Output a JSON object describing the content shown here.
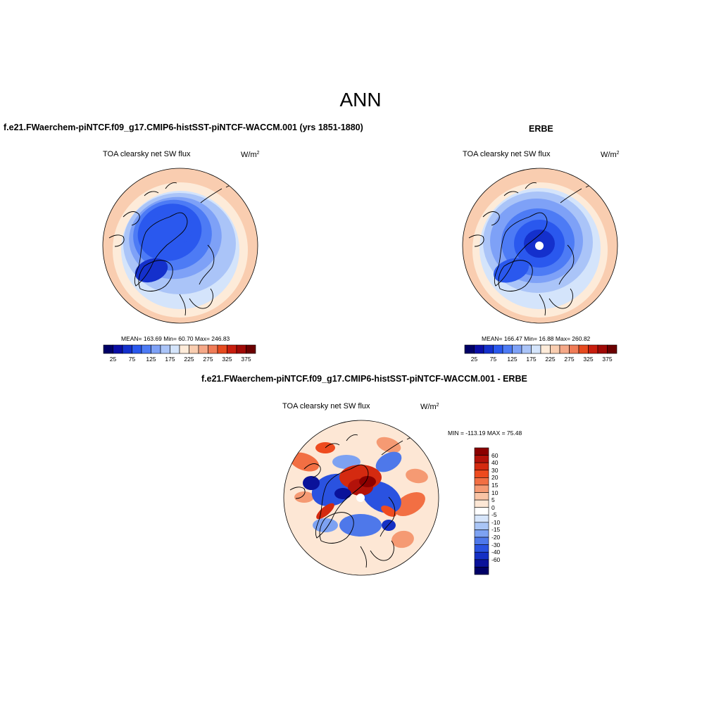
{
  "figure": {
    "title": "ANN"
  },
  "panels": [
    {
      "title": "f.e21.FWaerchem-piNTCF.f09_g17.CMIP6-histSST-piNTCF-WACCM.001 (yrs 1851-1880)",
      "variable": "TOA clearsky net SW flux",
      "units_base": "W/m",
      "units_exp": "2",
      "stats": "MEAN= 163.69  Min=  60.70  Max= 246.83"
    },
    {
      "title": "ERBE",
      "variable": "TOA clearsky net SW flux",
      "units_base": "W/m",
      "units_exp": "2",
      "stats": "MEAN= 166.47  Min=  16.88  Max= 260.82"
    },
    {
      "title": "f.e21.FWaerchem-piNTCF.f09_g17.CMIP6-histSST-piNTCF-WACCM.001 - ERBE",
      "variable": "TOA clearsky net SW flux",
      "units_base": "W/m",
      "units_exp": "2",
      "stats": "MIN = -113.19 MAX =  75.48"
    }
  ],
  "chart_data": [
    {
      "type": "heatmap",
      "projection": "north-polar-stereographic",
      "title": "f.e21.FWaerchem-piNTCF.f09_g17.CMIP6-histSST-piNTCF-WACCM.001 (yrs 1851-1880)",
      "variable": "TOA clearsky net SW flux",
      "units": "W/m2",
      "mean": 163.69,
      "min": 60.7,
      "max": 246.83,
      "colorbar": {
        "orientation": "horizontal",
        "levels": [
          25,
          50,
          75,
          100,
          125,
          150,
          175,
          200,
          225,
          250,
          275,
          300,
          325,
          350,
          375
        ],
        "tick_labels": [
          "25",
          "75",
          "125",
          "175",
          "225",
          "275",
          "325",
          "375"
        ],
        "colors": [
          "#000066",
          "#0a0ea6",
          "#1430cc",
          "#2a58ee",
          "#4d7bf5",
          "#7ea1f7",
          "#aac4f8",
          "#d4e4fb",
          "#fdebd9",
          "#f9cdb0",
          "#f5a888",
          "#f07c57",
          "#e64a1f",
          "#c81e0e",
          "#a00a06",
          "#6b0000"
        ]
      }
    },
    {
      "type": "heatmap",
      "projection": "north-polar-stereographic",
      "title": "ERBE",
      "variable": "TOA clearsky net SW flux",
      "units": "W/m2",
      "mean": 166.47,
      "min": 16.88,
      "max": 260.82,
      "colorbar": {
        "orientation": "horizontal",
        "levels": [
          25,
          50,
          75,
          100,
          125,
          150,
          175,
          200,
          225,
          250,
          275,
          300,
          325,
          350,
          375
        ],
        "tick_labels": [
          "25",
          "75",
          "125",
          "175",
          "225",
          "275",
          "325",
          "375"
        ],
        "colors": [
          "#000066",
          "#0a0ea6",
          "#1430cc",
          "#2a58ee",
          "#4d7bf5",
          "#7ea1f7",
          "#aac4f8",
          "#d4e4fb",
          "#fdebd9",
          "#f9cdb0",
          "#f5a888",
          "#f07c57",
          "#e64a1f",
          "#c81e0e",
          "#a00a06",
          "#6b0000"
        ]
      }
    },
    {
      "type": "heatmap",
      "projection": "north-polar-stereographic",
      "title": "f.e21.FWaerchem-piNTCF.f09_g17.CMIP6-histSST-piNTCF-WACCM.001 - ERBE",
      "variable": "TOA clearsky net SW flux",
      "units": "W/m2",
      "min": -113.19,
      "max": 75.48,
      "colorbar": {
        "orientation": "vertical",
        "levels": [
          60,
          40,
          30,
          20,
          15,
          10,
          5,
          0,
          -5,
          -10,
          -15,
          -20,
          -30,
          -40,
          -60
        ],
        "tick_labels": [
          "60",
          "40",
          "30",
          "20",
          "15",
          "10",
          "5",
          "0",
          "-5",
          "-10",
          "-15",
          "-20",
          "-30",
          "-40",
          "-60"
        ],
        "colors": [
          "#8b0000",
          "#b3120a",
          "#d42a10",
          "#ee4b1f",
          "#f26f43",
          "#f59a73",
          "#f9c4a5",
          "#fde7d5",
          "#ffffff",
          "#d6e5fb",
          "#a9c5f6",
          "#7da2f2",
          "#4e78ea",
          "#2a52e0",
          "#1530c4",
          "#0a129a",
          "#000066"
        ]
      }
    }
  ]
}
